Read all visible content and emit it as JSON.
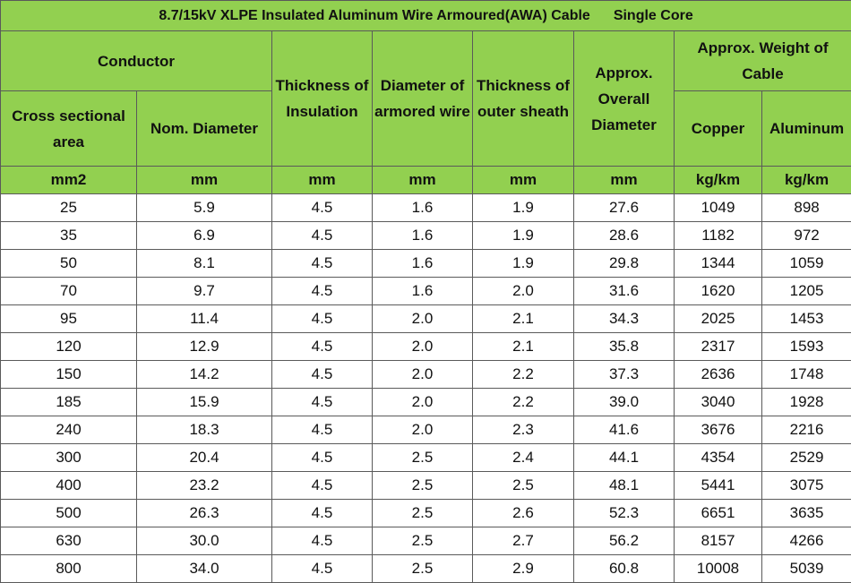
{
  "title": {
    "main": "8.7/15kV XLPE Insulated Aluminum Wire Armoured(AWA) Cable",
    "sub": "Single Core"
  },
  "headers": {
    "conductor": "Conductor",
    "cross_sectional_area": "Cross sectional area",
    "nom_diameter": "Nom. Diameter",
    "thickness_insulation": "Thickness of Insulation",
    "diameter_armored_wire": "Diameter of armored wire",
    "thickness_outer_sheath": "Thickness of outer sheath",
    "overall_diameter": "Approx. Overall Diameter",
    "approx_weight": "Approx. Weight of Cable",
    "copper": "Copper",
    "aluminum": "Aluminum"
  },
  "units": [
    "mm2",
    "mm",
    "mm",
    "mm",
    "mm",
    "mm",
    "kg/km",
    "kg/km"
  ],
  "rows": [
    [
      "25",
      "5.9",
      "4.5",
      "1.6",
      "1.9",
      "27.6",
      "1049",
      "898"
    ],
    [
      "35",
      "6.9",
      "4.5",
      "1.6",
      "1.9",
      "28.6",
      "1182",
      "972"
    ],
    [
      "50",
      "8.1",
      "4.5",
      "1.6",
      "1.9",
      "29.8",
      "1344",
      "1059"
    ],
    [
      "70",
      "9.7",
      "4.5",
      "1.6",
      "2.0",
      "31.6",
      "1620",
      "1205"
    ],
    [
      "95",
      "11.4",
      "4.5",
      "2.0",
      "2.1",
      "34.3",
      "2025",
      "1453"
    ],
    [
      "120",
      "12.9",
      "4.5",
      "2.0",
      "2.1",
      "35.8",
      "2317",
      "1593"
    ],
    [
      "150",
      "14.2",
      "4.5",
      "2.0",
      "2.2",
      "37.3",
      "2636",
      "1748"
    ],
    [
      "185",
      "15.9",
      "4.5",
      "2.0",
      "2.2",
      "39.0",
      "3040",
      "1928"
    ],
    [
      "240",
      "18.3",
      "4.5",
      "2.0",
      "2.3",
      "41.6",
      "3676",
      "2216"
    ],
    [
      "300",
      "20.4",
      "4.5",
      "2.5",
      "2.4",
      "44.1",
      "4354",
      "2529"
    ],
    [
      "400",
      "23.2",
      "4.5",
      "2.5",
      "2.5",
      "48.1",
      "5441",
      "3075"
    ],
    [
      "500",
      "26.3",
      "4.5",
      "2.5",
      "2.6",
      "52.3",
      "6651",
      "3635"
    ],
    [
      "630",
      "30.0",
      "4.5",
      "2.5",
      "2.7",
      "56.2",
      "8157",
      "4266"
    ],
    [
      "800",
      "34.0",
      "4.5",
      "2.5",
      "2.9",
      "60.8",
      "10008",
      "5039"
    ]
  ],
  "colors": {
    "header_background": "#92d050",
    "border": "#5a5a5a",
    "body_background": "#ffffff"
  }
}
